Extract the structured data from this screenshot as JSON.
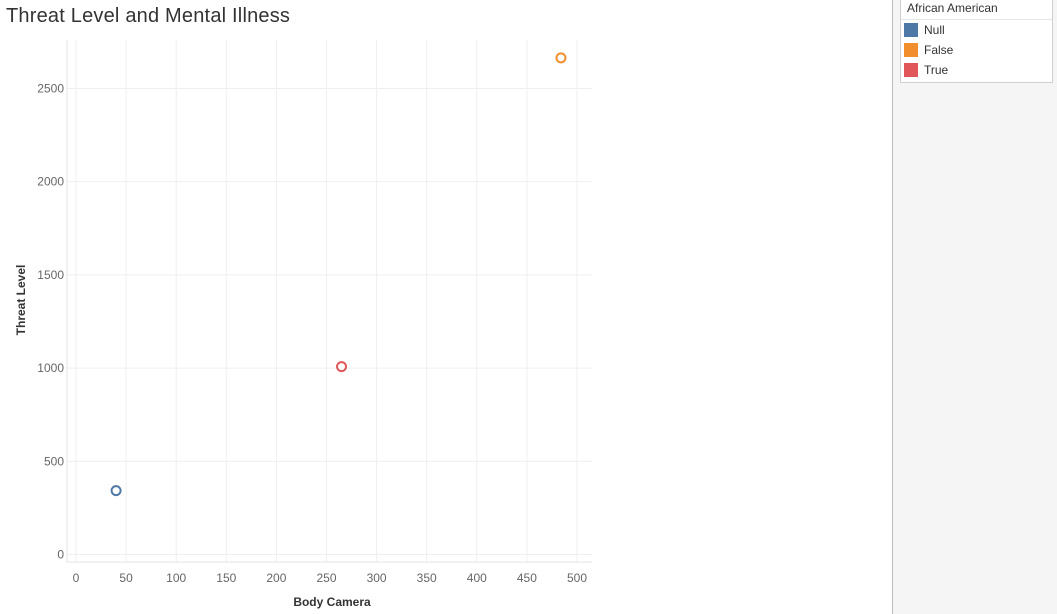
{
  "chart_data": {
    "type": "scatter",
    "title": "Threat Level and Mental Illness",
    "xlabel": "Body Camera",
    "ylabel": "Threat Level",
    "xlim": [
      0,
      510
    ],
    "ylim": [
      -40,
      2760
    ],
    "x_ticks": [
      0,
      50,
      100,
      150,
      200,
      250,
      300,
      350,
      400,
      450,
      500
    ],
    "y_ticks": [
      0,
      500,
      1000,
      1500,
      2000,
      2500
    ],
    "grid": true,
    "legend_title": "African American",
    "legend_position": "right",
    "series": [
      {
        "name": "Null",
        "color": "#4e79a7",
        "points": [
          {
            "x": 40,
            "y": 343
          }
        ]
      },
      {
        "name": "False",
        "color": "#f28e2b",
        "points": [
          {
            "x": 484,
            "y": 2664
          }
        ]
      },
      {
        "name": "True",
        "color": "#e15759",
        "points": [
          {
            "x": 265,
            "y": 1008
          }
        ]
      }
    ]
  }
}
